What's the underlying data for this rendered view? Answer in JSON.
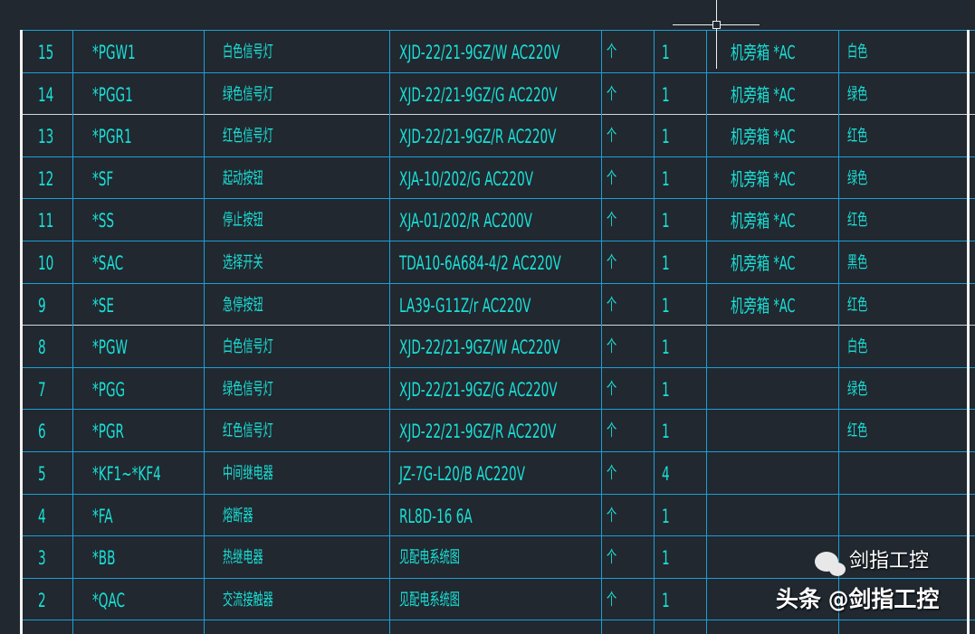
{
  "colors": {
    "background": "#212830",
    "grid": "#1c9fd6",
    "text": "#19e0d6",
    "crosshair": "#f0f0f0"
  },
  "cursor": {
    "type": "crosshair-icon"
  },
  "table": {
    "rows": [
      {
        "no": "15",
        "code": "*PGW1",
        "name": "白色信号灯",
        "model": "XJD-22/21-9GZ/W",
        "model_overlay": "AC220V",
        "unit": "个",
        "qty": "1",
        "location": "机旁箱 *AC",
        "remark": "白色"
      },
      {
        "no": "14",
        "code": "*PGG1",
        "name": "绿色信号灯",
        "model": "XJD-22/21-9GZ/G",
        "model_overlay": "AC220V",
        "unit": "个",
        "qty": "1",
        "location": "机旁箱 *AC",
        "remark": "绿色"
      },
      {
        "no": "13",
        "code": "*PGR1",
        "name": "红色信号灯",
        "model": "XJD-22/21-9GZ/R",
        "model_overlay": "AC220V",
        "unit": "个",
        "qty": "1",
        "location": "机旁箱 *AC",
        "remark": "红色"
      },
      {
        "no": "12",
        "code": "*SF",
        "name": "起动按钮",
        "model": "XJA-10/202/G",
        "model_overlay": "AC220V",
        "unit": "个",
        "qty": "1",
        "location": "机旁箱 *AC",
        "remark": "绿色"
      },
      {
        "no": "11",
        "code": "*SS",
        "name": "停止按钮",
        "model": "XJA-01/202/R",
        "model_overlay": "AC200V",
        "unit": "个",
        "qty": "1",
        "location": "机旁箱 *AC",
        "remark": "红色"
      },
      {
        "no": "10",
        "code": "*SAC",
        "name": "选择开关",
        "model": "TDA10-6A684-4/2",
        "model_overlay": "AC220V",
        "unit": "个",
        "qty": "1",
        "location": "机旁箱 *AC",
        "remark": "黑色"
      },
      {
        "no": "9",
        "code": "*SE",
        "name": "急停按钮",
        "model": "LA39-G11Z/r",
        "model_overlay": "AC220V",
        "unit": "个",
        "qty": "1",
        "location": "机旁箱 *AC",
        "remark": "红色"
      },
      {
        "no": "8",
        "code": "*PGW",
        "name": "白色信号灯",
        "model": "XJD-22/21-9GZ/W",
        "model_overlay": "AC220V",
        "unit": "个",
        "qty": "1",
        "location": "",
        "remark": "白色"
      },
      {
        "no": "7",
        "code": "*PGG",
        "name": "绿色信号灯",
        "model": "XJD-22/21-9GZ/G",
        "model_overlay": "AC220V",
        "unit": "个",
        "qty": "1",
        "location": "",
        "remark": "绿色"
      },
      {
        "no": "6",
        "code": "*PGR",
        "name": "红色信号灯",
        "model": "XJD-22/21-9GZ/R",
        "model_overlay": "AC220V",
        "unit": "个",
        "qty": "1",
        "location": "",
        "remark": "红色"
      },
      {
        "no": "5",
        "code": "*KF1~*KF4",
        "name": "中间继电器",
        "model": "JZ-7G-L20/B",
        "model_overlay": "AC220V",
        "unit": "个",
        "qty": "4",
        "location": "",
        "remark": ""
      },
      {
        "no": "4",
        "code": "*FA",
        "name": "熔断器",
        "model": "RL8D-16",
        "model_overlay": "6A",
        "unit": "个",
        "qty": "1",
        "location": "",
        "remark": ""
      },
      {
        "no": "3",
        "code": "*BB",
        "name": "热继电器",
        "model": "见配电系统图",
        "model_overlay": "",
        "unit": "个",
        "qty": "1",
        "location": "",
        "remark": ""
      },
      {
        "no": "2",
        "code": "*QAC",
        "name": "交流接触器",
        "model": "见配电系统图",
        "model_overlay": "",
        "unit": "个",
        "qty": "1",
        "location": "",
        "remark": ""
      }
    ]
  },
  "watermark": {
    "wechat": "剑指工控",
    "toutiao": "头条 @剑指工控"
  }
}
